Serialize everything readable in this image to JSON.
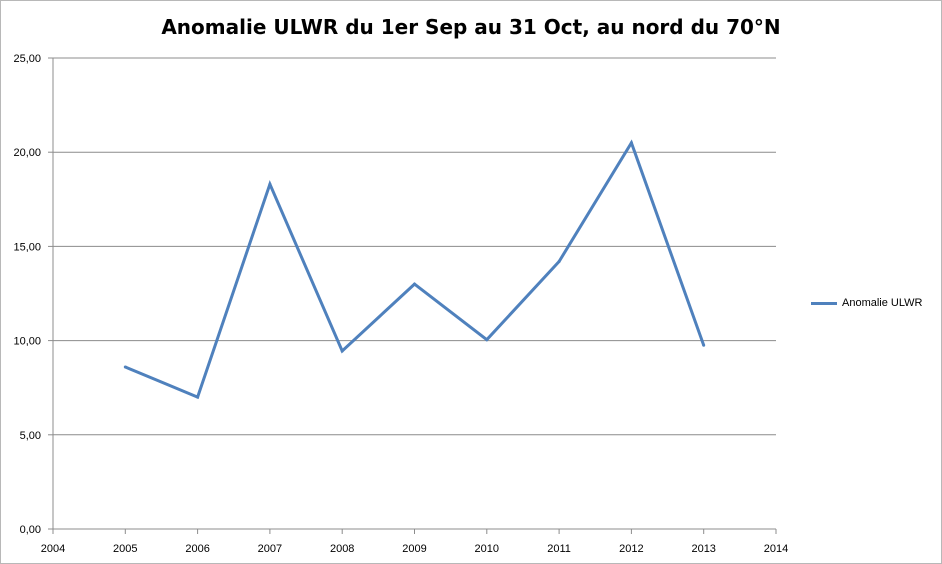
{
  "chart_data": {
    "type": "line",
    "title": "Anomalie ULWR du 1er Sep au 31 Oct, au nord du 70°N",
    "xlabel": "",
    "ylabel": "",
    "xlim": [
      2004,
      2014
    ],
    "ylim": [
      0,
      25
    ],
    "x_ticks": [
      "2004",
      "2005",
      "2006",
      "2007",
      "2008",
      "2009",
      "2010",
      "2011",
      "2012",
      "2013",
      "2014"
    ],
    "y_ticks": [
      "0,00",
      "5,00",
      "10,00",
      "15,00",
      "20,00",
      "25,00"
    ],
    "y_tick_values": [
      0,
      5,
      10,
      15,
      20,
      25
    ],
    "x_tick_values": [
      2004,
      2005,
      2006,
      2007,
      2008,
      2009,
      2010,
      2011,
      2012,
      2013,
      2014
    ],
    "grid": "horizontal",
    "legend_position": "right",
    "series": [
      {
        "name": "Anomalie ULWR",
        "color": "#4f81bd",
        "x": [
          2005,
          2006,
          2007,
          2008,
          2009,
          2010,
          2011,
          2012,
          2013
        ],
        "values": [
          8.6,
          7.0,
          18.3,
          9.45,
          13.0,
          10.05,
          14.2,
          20.5,
          9.75
        ]
      }
    ]
  }
}
